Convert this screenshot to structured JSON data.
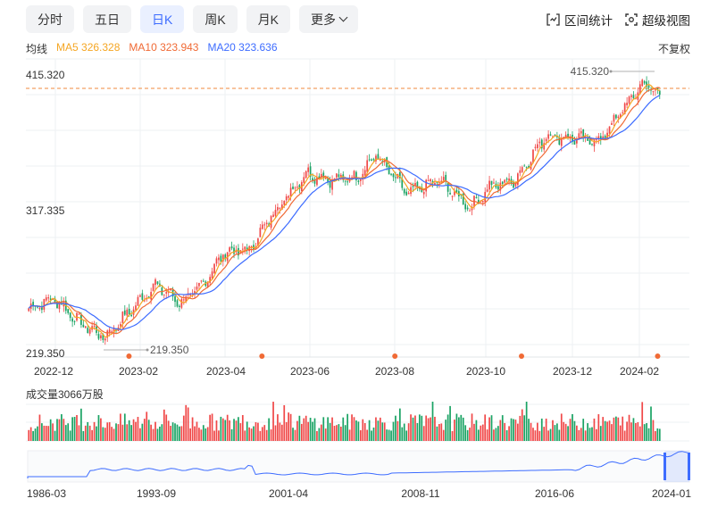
{
  "tabs": [
    "分时",
    "五日",
    "日K",
    "周K",
    "月K",
    "更多"
  ],
  "active_tab": "日K",
  "tools": {
    "range_stats": "区间统计",
    "super_view": "超级视图"
  },
  "legend": {
    "label": "均线",
    "ma5": "MA5 326.328",
    "ma10": "MA10 323.943",
    "ma20": "MA20 323.636"
  },
  "adjust_label": "不复权",
  "colors": {
    "up": "#f04848",
    "down": "#1aa364",
    "ma5": "#f5a623",
    "ma10": "#f06a35",
    "ma20": "#3d6cff",
    "accent": "#3d6cff"
  },
  "chart_data": {
    "type": "candlestick",
    "price_axis": {
      "ticks": [
        "415.320",
        "317.335",
        "219.350"
      ],
      "min": 219.35,
      "max": 415.32
    },
    "date_ticks": [
      "2022-12",
      "2023-02",
      "2023-04",
      "2023-06",
      "2023-08",
      "2023-10",
      "2023-12",
      "2024-02"
    ],
    "high_marker": "415.320",
    "low_marker": "219.350",
    "price_keypoints": [
      {
        "t": 0.0,
        "p": 248
      },
      {
        "t": 0.04,
        "p": 255
      },
      {
        "t": 0.08,
        "p": 238
      },
      {
        "t": 0.12,
        "p": 227
      },
      {
        "t": 0.165,
        "p": 248
      },
      {
        "t": 0.2,
        "p": 265
      },
      {
        "t": 0.24,
        "p": 252
      },
      {
        "t": 0.27,
        "p": 262
      },
      {
        "t": 0.31,
        "p": 288
      },
      {
        "t": 0.35,
        "p": 290
      },
      {
        "t": 0.39,
        "p": 318
      },
      {
        "t": 0.44,
        "p": 345
      },
      {
        "t": 0.48,
        "p": 340
      },
      {
        "t": 0.52,
        "p": 342
      },
      {
        "t": 0.55,
        "p": 358
      },
      {
        "t": 0.6,
        "p": 330
      },
      {
        "t": 0.65,
        "p": 340
      },
      {
        "t": 0.7,
        "p": 320
      },
      {
        "t": 0.73,
        "p": 335
      },
      {
        "t": 0.77,
        "p": 340
      },
      {
        "t": 0.82,
        "p": 372
      },
      {
        "t": 0.86,
        "p": 370
      },
      {
        "t": 0.905,
        "p": 368
      },
      {
        "t": 0.94,
        "p": 390
      },
      {
        "t": 0.975,
        "p": 410
      },
      {
        "t": 1.0,
        "p": 400
      }
    ],
    "event_markers_t": [
      0.16,
      0.37,
      0.58,
      0.78,
      0.995
    ],
    "volume_label": "成交量3066万股",
    "overview_ticks": [
      "1986-03",
      "1993-09",
      "2001-04",
      "2008-11",
      "2016-06",
      "2024-01"
    ]
  }
}
